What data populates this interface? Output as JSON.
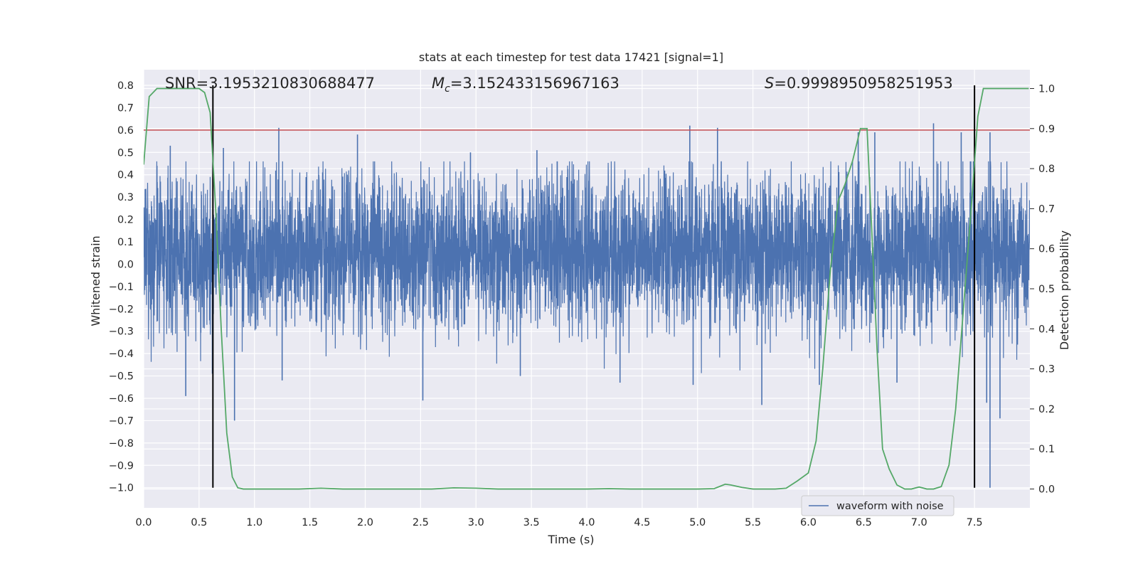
{
  "chart_data": {
    "type": "line",
    "title": "stats at each timestep for test data 17421 [signal=1]",
    "xlabel": "Time (s)",
    "ylabel": "Whitened strain",
    "ylabel_right": "Detection probability",
    "xlim": [
      0.0,
      8.0
    ],
    "ylim": [
      -1.09,
      0.87
    ],
    "ylim_right": [
      -0.047,
      1.047
    ],
    "x_ticks": [
      0.0,
      0.5,
      1.0,
      1.5,
      2.0,
      2.5,
      3.0,
      3.5,
      4.0,
      4.5,
      5.0,
      5.5,
      6.0,
      6.5,
      7.0,
      7.5
    ],
    "x_tick_labels": [
      "0.0",
      "0.5",
      "1.0",
      "1.5",
      "2.0",
      "2.5",
      "3.0",
      "3.5",
      "4.0",
      "4.5",
      "5.0",
      "5.5",
      "6.0",
      "6.5",
      "7.0",
      "7.5"
    ],
    "y_ticks": [
      0.8,
      0.7,
      0.6,
      0.5,
      0.4,
      0.3,
      0.2,
      0.1,
      0.0,
      -0.1,
      -0.2,
      -0.3,
      -0.4,
      -0.5,
      -0.6,
      -0.7,
      -0.8,
      -0.9,
      -1.0
    ],
    "y_tick_labels": [
      "0.8",
      "0.7",
      "0.6",
      "0.5",
      "0.4",
      "0.3",
      "0.2",
      "0.1",
      "0.0",
      "−0.1",
      "−0.2",
      "−0.3",
      "−0.4",
      "−0.5",
      "−0.6",
      "−0.7",
      "−0.8",
      "−0.9",
      "−1.0"
    ],
    "y_right_ticks": [
      1.0,
      0.9,
      0.8,
      0.7,
      0.6,
      0.5,
      0.4,
      0.3,
      0.2,
      0.1,
      0.0
    ],
    "y_right_tick_labels": [
      "1.0",
      "0.9",
      "0.8",
      "0.7",
      "0.6",
      "0.5",
      "0.4",
      "0.3",
      "0.2",
      "0.1",
      "0.0"
    ],
    "grid": true,
    "legend_position": "lower right",
    "legend": [
      "waveform with noise"
    ],
    "annotations": {
      "snr": "SNR=3.1953210830688477",
      "mc_symbol": "M",
      "mc_subscript": "c",
      "mc_value": "=3.152433156967163",
      "s_symbol": "S",
      "s_value": "=0.9998950958251953"
    },
    "threshold_line": {
      "y": 0.6,
      "color": "#c44e52"
    },
    "vertical_markers": [
      0.625,
      7.5
    ],
    "vertical_marker_range": [
      -1.0,
      0.8
    ],
    "series": [
      {
        "name": "waveform with noise",
        "axis": "left",
        "color": "#4c72b0",
        "description_type": "noise",
        "band_core": [
          -0.13,
          0.24
        ],
        "typical_peaks": [
          0.41,
          -0.46
        ],
        "notable_spikes": [
          {
            "x": 0.12,
            "y": 0.44
          },
          {
            "x": 0.24,
            "y": 0.53
          },
          {
            "x": 0.38,
            "y": -0.59
          },
          {
            "x": 0.62,
            "y": -0.49
          },
          {
            "x": 0.72,
            "y": 0.52
          },
          {
            "x": 0.82,
            "y": -0.7
          },
          {
            "x": 1.22,
            "y": 0.61
          },
          {
            "x": 1.25,
            "y": -0.52
          },
          {
            "x": 1.93,
            "y": 0.58
          },
          {
            "x": 2.52,
            "y": -0.61
          },
          {
            "x": 2.95,
            "y": 0.5
          },
          {
            "x": 3.4,
            "y": -0.5
          },
          {
            "x": 3.55,
            "y": 0.51
          },
          {
            "x": 4.3,
            "y": -0.53
          },
          {
            "x": 4.93,
            "y": 0.62
          },
          {
            "x": 4.96,
            "y": -0.54
          },
          {
            "x": 5.18,
            "y": 0.61
          },
          {
            "x": 5.58,
            "y": -0.63
          },
          {
            "x": 6.1,
            "y": -0.54
          },
          {
            "x": 6.45,
            "y": 0.59
          },
          {
            "x": 6.6,
            "y": 0.59
          },
          {
            "x": 6.8,
            "y": -0.53
          },
          {
            "x": 7.13,
            "y": 0.63
          },
          {
            "x": 7.38,
            "y": 0.59
          },
          {
            "x": 7.61,
            "y": -0.62
          },
          {
            "x": 7.64,
            "y": -1.0
          },
          {
            "x": 7.64,
            "y": 0.59
          },
          {
            "x": 7.73,
            "y": -0.69
          }
        ]
      },
      {
        "name": "",
        "axis": "right",
        "color": "#55a868",
        "x": [
          0.0,
          0.05,
          0.12,
          0.2,
          0.3,
          0.4,
          0.5,
          0.55,
          0.6,
          0.65,
          0.7,
          0.75,
          0.8,
          0.85,
          0.9,
          1.0,
          1.2,
          1.4,
          1.6,
          1.8,
          2.0,
          2.2,
          2.4,
          2.6,
          2.8,
          3.0,
          3.2,
          3.4,
          3.6,
          3.8,
          4.0,
          4.2,
          4.4,
          4.6,
          4.8,
          5.0,
          5.15,
          5.25,
          5.3,
          5.4,
          5.5,
          5.6,
          5.7,
          5.8,
          5.9,
          6.0,
          6.07,
          6.13,
          6.2,
          6.27,
          6.33,
          6.4,
          6.47,
          6.53,
          6.58,
          6.62,
          6.67,
          6.73,
          6.8,
          6.87,
          6.93,
          7.0,
          7.07,
          7.13,
          7.2,
          7.27,
          7.33,
          7.4,
          7.47,
          7.53,
          7.58,
          7.63,
          7.7,
          7.8,
          7.99
        ],
        "values": [
          0.81,
          0.98,
          1.0,
          1.0,
          1.0,
          1.0,
          1.0,
          0.99,
          0.94,
          0.7,
          0.4,
          0.14,
          0.03,
          0.003,
          0.0,
          0.0,
          0.0,
          0.0,
          0.002,
          0.0,
          0.0,
          0.0,
          0.0,
          0.0,
          0.003,
          0.002,
          0.0,
          0.0,
          0.0,
          0.0,
          0.0,
          0.001,
          0.0,
          0.0,
          0.0,
          0.0,
          0.001,
          0.012,
          0.01,
          0.004,
          0.0,
          0.0,
          0.0,
          0.002,
          0.02,
          0.04,
          0.12,
          0.3,
          0.55,
          0.72,
          0.76,
          0.82,
          0.9,
          0.9,
          0.6,
          0.35,
          0.1,
          0.05,
          0.01,
          0.0,
          0.0,
          0.005,
          0.0,
          0.0,
          0.006,
          0.06,
          0.2,
          0.45,
          0.7,
          0.93,
          1.0,
          1.0,
          1.0,
          1.0,
          1.0
        ]
      }
    ]
  }
}
